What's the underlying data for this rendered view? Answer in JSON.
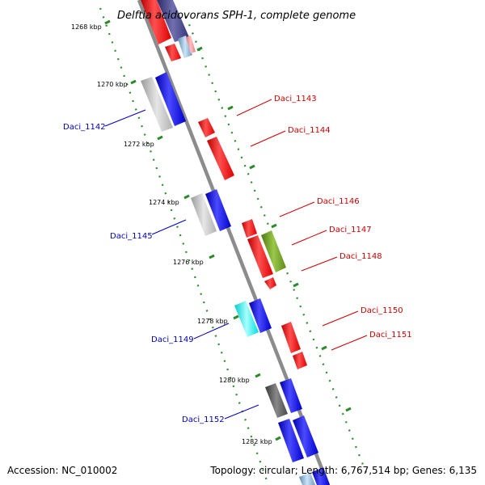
{
  "title": "Delftia acidovorans SPH-1, complete genome",
  "footer": {
    "accession": "Accession: NC_010002",
    "summary": "Topology: circular; Length: 6,767,514 bp; Genes: 6,135"
  },
  "colors": {
    "backbone": "#8c8c8c",
    "forward_label": "#0000bb",
    "reverse_label": "#cc0000",
    "tick": "#2a8a2a"
  },
  "ticks": [
    "1268 kbp",
    "1270 kbp",
    "1272 kbp",
    "1274 kbp",
    "1276 kbp",
    "1278 kbp",
    "1280 kbp",
    "1282 kbp"
  ],
  "gene_labels": {
    "forward": [
      "Daci_1142",
      "Daci_1145",
      "Daci_1149",
      "Daci_1152"
    ],
    "reverse": [
      "Daci_1143",
      "Daci_1144",
      "Daci_1146",
      "Daci_1147",
      "Daci_1148",
      "Daci_1150",
      "Daci_1151"
    ]
  }
}
